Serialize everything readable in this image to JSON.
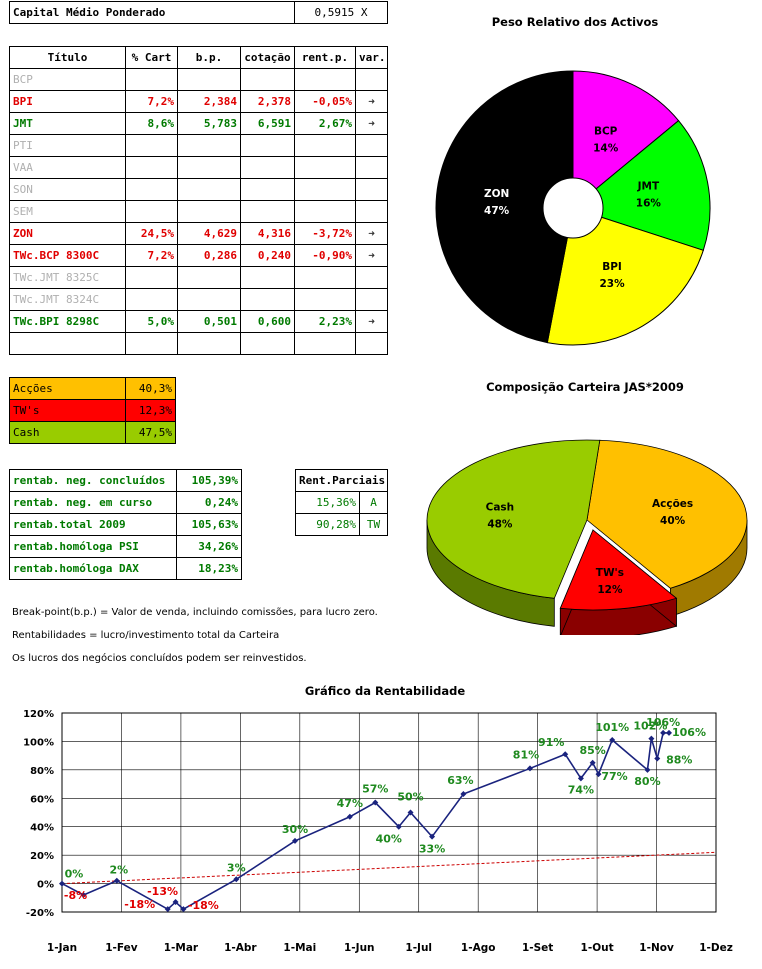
{
  "capital": {
    "label": "Capital Médio Ponderado",
    "value": "0,5915",
    "unit": "X"
  },
  "table": {
    "headers": [
      "Título",
      "% Cart",
      "b.p.",
      "cotação",
      "rent.p.",
      "var."
    ],
    "rows": [
      {
        "name": "BCP",
        "cart": "",
        "bp": "",
        "cot": "",
        "rent": "",
        "var": "",
        "tone": "gry"
      },
      {
        "name": "BPI",
        "cart": "7,2%",
        "bp": "2,384",
        "cot": "2,378",
        "rent": "-0,05%",
        "var": "➜",
        "tone": "red"
      },
      {
        "name": "JMT",
        "cart": "8,6%",
        "bp": "5,783",
        "cot": "6,591",
        "rent": "2,67%",
        "var": "➜",
        "tone": "grn"
      },
      {
        "name": "PTI",
        "cart": "",
        "bp": "",
        "cot": "",
        "rent": "",
        "var": "",
        "tone": "gry"
      },
      {
        "name": "VAA",
        "cart": "",
        "bp": "",
        "cot": "",
        "rent": "",
        "var": "",
        "tone": "gry"
      },
      {
        "name": "SON",
        "cart": "",
        "bp": "",
        "cot": "",
        "rent": "",
        "var": "",
        "tone": "gry"
      },
      {
        "name": "SEM",
        "cart": "",
        "bp": "",
        "cot": "",
        "rent": "",
        "var": "",
        "tone": "gry"
      },
      {
        "name": "ZON",
        "cart": "24,5%",
        "bp": "4,629",
        "cot": "4,316",
        "rent": "-3,72%",
        "var": "➜",
        "tone": "red"
      },
      {
        "name": "TWc.BCP 8300C",
        "cart": "7,2%",
        "bp": "0,286",
        "cot": "0,240",
        "rent": "-0,90%",
        "var": "➜",
        "tone": "red"
      },
      {
        "name": "TWc.JMT 8325C",
        "cart": "",
        "bp": "",
        "cot": "",
        "rent": "",
        "var": "",
        "tone": "gry"
      },
      {
        "name": "TWc.JMT 8324C",
        "cart": "",
        "bp": "",
        "cot": "",
        "rent": "",
        "var": "",
        "tone": "gry"
      },
      {
        "name": "TWc.BPI 8298C",
        "cart": "5,0%",
        "bp": "0,501",
        "cot": "0,600",
        "rent": "2,23%",
        "var": "➜",
        "tone": "grn"
      },
      {
        "name": "",
        "cart": "",
        "bp": "",
        "cot": "",
        "rent": "",
        "var": "",
        "tone": "gry"
      }
    ]
  },
  "composition": [
    {
      "label": "Acções",
      "value": "40,3%",
      "color": "#ffc000"
    },
    {
      "label": "TW's",
      "value": "12,3%",
      "color": "#ff0000"
    },
    {
      "label": "Cash",
      "value": "47,5%",
      "color": "#99cc00"
    }
  ],
  "rentab": [
    {
      "label": "rentab. neg. concluídos",
      "value": "105,39%"
    },
    {
      "label": "rentab. neg. em curso",
      "value": "0,24%"
    },
    {
      "label": "rentab.total 2009",
      "value": "105,63%"
    },
    {
      "label": "rentab.homóloga PSI",
      "value": "34,26%"
    },
    {
      "label": "rentab.homóloga DAX",
      "value": "18,23%"
    }
  ],
  "parciais": {
    "header": "Rent.Parciais",
    "rows": [
      {
        "value": "15,36%",
        "tag": "A"
      },
      {
        "value": "90,28%",
        "tag": "TW"
      }
    ]
  },
  "notes": [
    "Break-point(b.p.) = Valor de venda, incluindo comissões, para lucro zero.",
    "Rentabilidades = lucro/investimento total da Carteira",
    "Os lucros dos negócios concluídos podem ser reinvestidos."
  ],
  "chart_data": [
    {
      "type": "pie",
      "title": "Peso Relativo dos Activos",
      "labels": [
        "BCP",
        "JMT",
        "BPI",
        "ZON"
      ],
      "values": [
        14,
        16,
        23,
        47
      ],
      "value_labels": [
        "14%",
        "16%",
        "23%",
        "47%"
      ],
      "colors": [
        "#ff00ff",
        "#00ff00",
        "#ffff00",
        "#000000"
      ],
      "donut": true
    },
    {
      "type": "pie",
      "title": "Composição Carteira JAS*2009",
      "labels": [
        "Acções",
        "TW's",
        "Cash"
      ],
      "values": [
        40,
        12,
        48
      ],
      "value_labels": [
        "40%",
        "12%",
        "48%"
      ],
      "colors": [
        "#ffc000",
        "#ff0000",
        "#99cc00"
      ],
      "style": "3d-exploded"
    },
    {
      "type": "line",
      "title": "Gráfico da Rentabilidade",
      "x_ticks": [
        "1-Jan",
        "1-Fev",
        "1-Mar",
        "1-Abr",
        "1-Mai",
        "1-Jun",
        "1-Jul",
        "1-Ago",
        "1-Set",
        "1-Out",
        "1-Nov",
        "1-Dez"
      ],
      "y_ticks": [
        "-20%",
        "0%",
        "20%",
        "40%",
        "60%",
        "80%",
        "100%",
        "120%"
      ],
      "ylim": [
        -20,
        120
      ],
      "grid": true,
      "series": [
        {
          "color": "#1a237e",
          "points": [
            {
              "x": "2009-01-01",
              "y": 0,
              "label": "0%"
            },
            {
              "x": "2009-01-12",
              "y": -8,
              "label": "-8%"
            },
            {
              "x": "2009-01-29",
              "y": 2,
              "label": "2%"
            },
            {
              "x": "2009-02-24",
              "y": -18,
              "label": "-18%"
            },
            {
              "x": "2009-02-28",
              "y": -13,
              "label": "-13%"
            },
            {
              "x": "2009-03-04",
              "y": -18,
              "label": "-18%"
            },
            {
              "x": "2009-03-31",
              "y": 3,
              "label": "3%"
            },
            {
              "x": "2009-04-30",
              "y": 30,
              "label": "30%"
            },
            {
              "x": "2009-05-28",
              "y": 47,
              "label": "47%"
            },
            {
              "x": "2009-06-10",
              "y": 57,
              "label": "57%"
            },
            {
              "x": "2009-06-22",
              "y": 40,
              "label": "40%"
            },
            {
              "x": "2009-06-28",
              "y": 50,
              "label": "50%"
            },
            {
              "x": "2009-07-09",
              "y": 33,
              "label": "33%"
            },
            {
              "x": "2009-07-25",
              "y": 63,
              "label": "63%"
            },
            {
              "x": "2009-08-28",
              "y": 81,
              "label": "81%"
            },
            {
              "x": "2009-09-15",
              "y": 91,
              "label": "91%"
            },
            {
              "x": "2009-09-23",
              "y": 74,
              "label": "74%"
            },
            {
              "x": "2009-09-29",
              "y": 85,
              "label": "85%"
            },
            {
              "x": "2009-10-02",
              "y": 77,
              "label": "77%"
            },
            {
              "x": "2009-10-09",
              "y": 101,
              "label": "101%"
            },
            {
              "x": "2009-10-27",
              "y": 80,
              "label": "80%"
            },
            {
              "x": "2009-10-29",
              "y": 102,
              "label": "102%"
            },
            {
              "x": "2009-11-01",
              "y": 88,
              "label": "88%"
            },
            {
              "x": "2009-11-04",
              "y": 106,
              "label": "106%"
            },
            {
              "x": "2009-11-07",
              "y": 106,
              "label": "106%"
            }
          ]
        },
        {
          "style": "dashed",
          "color": "#cc0000",
          "points": [
            {
              "x": "2009-01-01",
              "y": 0
            },
            {
              "x": "2009-12-01",
              "y": 22
            }
          ]
        }
      ]
    }
  ]
}
